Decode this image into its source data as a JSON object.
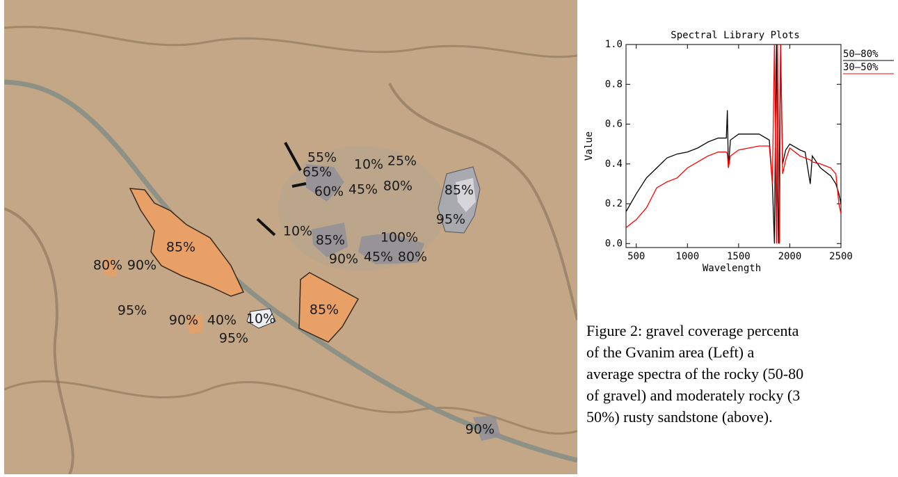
{
  "map": {
    "labels": [
      "55%",
      "65%",
      "10%",
      "25%",
      "60%",
      "45%",
      "80%",
      "85%",
      "95%",
      "10%",
      "85%",
      "100%",
      "90%",
      "45%",
      "80%",
      "85%",
      "80%",
      "90%",
      "95%",
      "90%",
      "40%",
      "10%",
      "95%",
      "85%",
      "90%"
    ]
  },
  "chart_data": {
    "type": "line",
    "title": "Spectral Library Plots",
    "x_label": "Wavelength",
    "y_label": "Value",
    "x": [
      400,
      500,
      600,
      700,
      800,
      900,
      1000,
      1100,
      1200,
      1300,
      1380,
      1390,
      1400,
      1420,
      1500,
      1600,
      1700,
      1800,
      1830,
      1850,
      1860,
      1870,
      1880,
      1890,
      1900,
      1910,
      1930,
      1960,
      2000,
      2100,
      2150,
      2200,
      2220,
      2300,
      2400,
      2450,
      2480,
      2500
    ],
    "series": [
      {
        "name": "50–80%",
        "color": "#000000",
        "values": [
          0.16,
          0.25,
          0.33,
          0.38,
          0.43,
          0.45,
          0.46,
          0.48,
          0.51,
          0.53,
          0.53,
          0.67,
          0.38,
          0.52,
          0.55,
          0.55,
          0.55,
          0.52,
          0.3,
          0,
          0.6,
          1,
          0.3,
          0,
          0.5,
          1,
          0.4,
          0.47,
          0.5,
          0.47,
          0.46,
          0.3,
          0.44,
          0.38,
          0.34,
          0.3,
          0.25,
          0.2
        ]
      },
      {
        "name": "30–50%",
        "color": "#ff0000",
        "values": [
          0.08,
          0.12,
          0.18,
          0.28,
          0.31,
          0.33,
          0.38,
          0.41,
          0.44,
          0.46,
          0.46,
          0.45,
          0.38,
          0.44,
          0.47,
          0.48,
          0.49,
          0.49,
          0.3,
          1,
          0.5,
          0,
          1,
          0.4,
          0,
          1,
          0.35,
          0.42,
          0.48,
          0.44,
          0.43,
          0.42,
          0.41,
          0.4,
          0.38,
          0.35,
          0.2,
          0.15
        ]
      }
    ],
    "xlim": [
      400,
      2500
    ],
    "xticks": [
      500,
      1000,
      1500,
      2000,
      2500
    ],
    "ylim": [
      -0.02,
      1.0
    ],
    "yticks": [
      {
        "value": 0,
        "label": "0.0"
      },
      {
        "value": 0.2,
        "label": "0.2"
      },
      {
        "value": 0.4,
        "label": "0.4"
      },
      {
        "value": 0.6,
        "label": "0.6"
      },
      {
        "value": 0.8,
        "label": "0.8"
      },
      {
        "value": 1,
        "label": "1.0"
      }
    ],
    "legend": "top-right"
  },
  "caption": {
    "lines": [
      "Figure 2: gravel coverage percenta",
      "of the Gvanim area (Left) a",
      "average spectra of the rocky (50-80",
      "of gravel) and moderately rocky (3",
      "50%) rusty sandstone (above)."
    ]
  }
}
